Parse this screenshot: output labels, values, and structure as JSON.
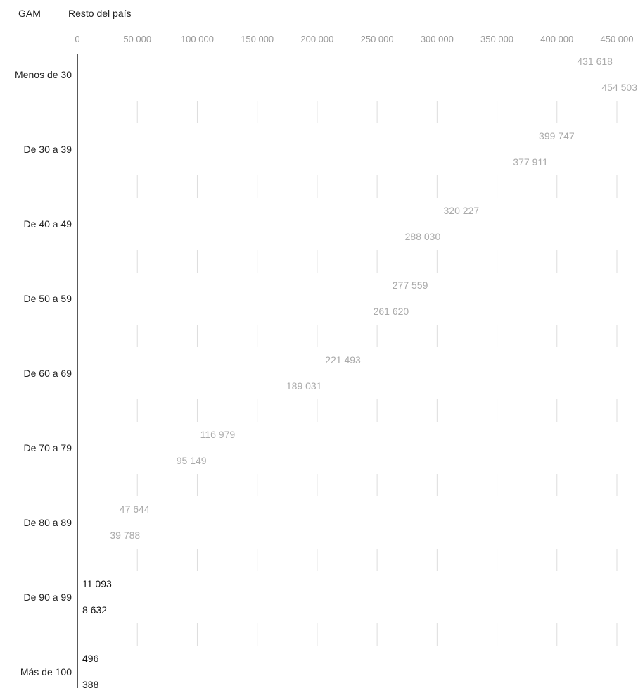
{
  "legend": [
    "GAM",
    "Resto del país"
  ],
  "chart_data": {
    "type": "bar",
    "orientation": "horizontal",
    "categories": [
      "Menos de 30",
      "De 30 a 39",
      "De 40 a 49",
      "De 50 a 59",
      "De 60 a 69",
      "De 70 a 79",
      "De 80 a 89",
      "De 90 a 99",
      "Más de 100"
    ],
    "series": [
      {
        "name": "GAM",
        "values": [
          431618,
          399747,
          320227,
          277559,
          221493,
          116979,
          47644,
          11093,
          496
        ]
      },
      {
        "name": "Resto del país",
        "values": [
          454503,
          377911,
          288030,
          261620,
          189031,
          95149,
          39788,
          8632,
          388
        ]
      }
    ],
    "value_labels": [
      [
        "431 618",
        "454 503"
      ],
      [
        "399 747",
        "377 911"
      ],
      [
        "320 227",
        "288 030"
      ],
      [
        "277 559",
        "261 620"
      ],
      [
        "221 493",
        "189 031"
      ],
      [
        "116 979",
        "95 149"
      ],
      [
        "47 644",
        "39 788"
      ],
      [
        "11 093",
        "8 632"
      ],
      [
        "496",
        "388"
      ]
    ],
    "x_ticks": [
      0,
      50000,
      100000,
      150000,
      200000,
      250000,
      300000,
      350000,
      400000,
      450000
    ],
    "x_tick_labels": [
      "0",
      "50 000",
      "100 000",
      "150 000",
      "200 000",
      "250 000",
      "300 000",
      "350 000",
      "400 000",
      "450 000"
    ],
    "xlim": [
      0,
      450000
    ],
    "grid": true,
    "legend_position": "top-left",
    "colors": {
      "axis": "#222222",
      "tick_label": "#999999",
      "grid": "#dddddd",
      "label_light": "#aaaaaa",
      "label_dark": "#111111"
    }
  }
}
